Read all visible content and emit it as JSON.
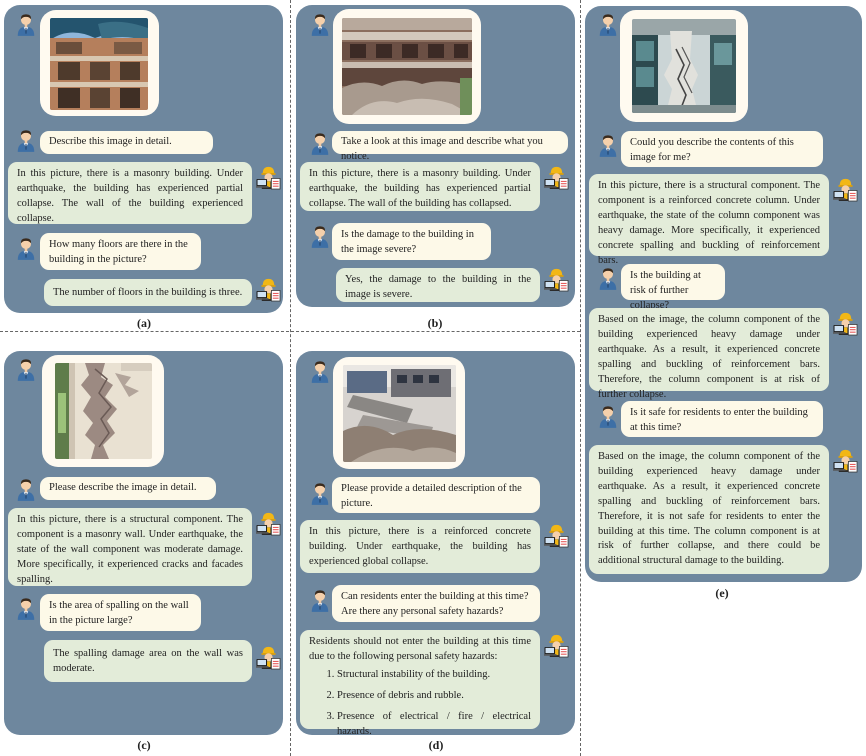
{
  "panels": {
    "a": {
      "caption": "(a)",
      "q1": "Describe this image in detail.",
      "a1": "In this picture, there is a masonry building. Under earthquake, the building has experienced partial collapse. The wall of the building experienced collapse.",
      "q2": "How many floors are there in the building in the picture?",
      "a2": "The number of floors in the building is three."
    },
    "b": {
      "caption": "(b)",
      "q1": "Take a look at this image and describe what you notice.",
      "a1": "In this picture, there is a masonry building. Under earthquake, the building has experienced partial collapse. The wall of the building has collapsed.",
      "q2": "Is the damage to the building in the image severe?",
      "a2": "Yes, the damage to the building in the image is severe."
    },
    "c": {
      "caption": "(c)",
      "q1": "Please describe the image in detail.",
      "a1": "In this picture, there is a structural component. The component is a masonry wall. Under earthquake, the state of the wall component was moderate damage. More specifically, it experienced cracks and facades spalling.",
      "q2": "Is the area of spalling on the wall in the picture large?",
      "a2": "The spalling damage area on the wall was moderate."
    },
    "d": {
      "caption": "(d)",
      "q1": "Please provide a detailed description of the picture.",
      "a1": "In this picture, there is a reinforced concrete building. Under earthquake, the building has experienced global collapse.",
      "q2": "Can residents enter the building at this time? Are there any personal safety hazards?",
      "a2_intro": "Residents should not enter the building at this time due to the following personal safety hazards:",
      "a2_items": [
        "Structural instability of the building.",
        "Presence of debris and rubble.",
        "Presence of electrical / fire / electrical hazards."
      ]
    },
    "e": {
      "caption": "(e)",
      "q1": "Could you describe the contents of this image for me?",
      "a1": "In this picture, there is a structural component. The component is a reinforced concrete column. Under earthquake, the state of the column component was heavy damage. More specifically, it experienced concrete spalling and buckling of reinforcement bars.",
      "q2": "Is the building at risk of further collapse?",
      "a2": "Based on the image, the column component of the building experienced heavy damage under earthquake. As a result, it experienced concrete spalling and buckling of reinforcement bars. Therefore, the column component is at risk of further collapse.",
      "q3": "Is it safe for residents to enter the building at this time?",
      "a3": "Based on the image, the column component of the building experienced heavy damage under earthquake. As a result, it experienced concrete spalling and buckling of reinforcement bars. Therefore, it is not safe for residents to enter the building at this time. The column component is at risk of further collapse, and there could be additional structural damage to the building."
    }
  },
  "colors": {
    "panel": "#6e879e",
    "question_bubble": "#fdf9e8",
    "answer_bubble": "#e3ecd9"
  },
  "icons": {
    "user": "user-avatar-icon",
    "assistant": "engineer-laptop-icon"
  }
}
